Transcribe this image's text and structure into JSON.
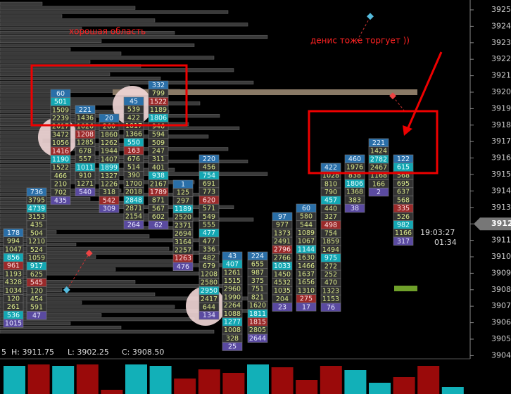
{
  "annotations": {
    "good_area": "хорошая область",
    "denis": "денис тоже торгует ))"
  },
  "price_axis": {
    "labels": [
      "3925",
      "3924",
      "3923",
      "3922",
      "3921",
      "3920",
      "3919",
      "3918",
      "3917",
      "3916",
      "3915",
      "3914",
      "3913",
      "3912",
      "3911",
      "3910",
      "3909",
      "3908",
      "3907",
      "3906",
      "3905",
      "3904"
    ],
    "current_index": 13
  },
  "clock": {
    "time": "19:03:27",
    "remaining": "01:34"
  },
  "status": {
    "period": "5",
    "high": "H: 3911.75",
    "low": "L: 3902.25",
    "close": "C: 3908.50"
  },
  "columns": [
    {
      "cells": [
        178,
        994,
        1047,
        856,
        961,
        1193,
        4328,
        1034,
        120,
        261,
        536,
        1015
      ]
    },
    {
      "cells": [
        736,
        3795,
        4739,
        3153,
        435,
        504,
        1210,
        524,
        1059,
        917,
        625,
        545,
        120,
        454,
        591,
        47
      ]
    },
    {
      "cells": [
        60,
        501,
        1509,
        2239,
        2617,
        3472,
        1056,
        1416,
        1190,
        1522,
        466,
        210,
        702,
        435
      ]
    },
    {
      "cells": [
        221,
        1436,
        1026,
        1208,
        1285,
        678,
        557,
        1011,
        910,
        1271,
        540
      ]
    },
    {
      "cells": [
        20,
        260,
        1860,
        1262,
        1944,
        1407,
        1899,
        1327,
        1226,
        318,
        542,
        309
      ]
    },
    {
      "cells": [
        45,
        539,
        422,
        1017,
        1366,
        550,
        163,
        676,
        514,
        390,
        1700,
        2018,
        2848,
        2871,
        2154,
        264
      ]
    },
    {
      "cells": [
        332,
        799,
        1522,
        1189,
        1806,
        946,
        594,
        509,
        247,
        311,
        401,
        938,
        2167,
        1789,
        871,
        567,
        602,
        62
      ]
    },
    {
      "cells": [
        1,
        125,
        297,
        1189,
        2520,
        2371,
        2694,
        3164,
        2257,
        1263,
        476
      ]
    },
    {
      "cells": [
        220,
        456,
        754,
        691,
        773,
        620,
        571,
        549,
        555,
        477,
        477,
        336,
        482,
        679,
        1208,
        2580,
        2950,
        2417,
        644,
        134
      ]
    },
    {
      "cells": [
        43,
        407,
        1261,
        1515,
        2960,
        1990,
        2264,
        1088,
        1277,
        1008,
        328,
        25
      ]
    },
    {
      "cells": [
        224,
        655,
        987,
        375,
        751,
        821,
        1620,
        1811,
        1815,
        2805,
        2644
      ]
    },
    {
      "cells": [
        97,
        977,
        1373,
        2491,
        2796,
        2766,
        1033,
        1450,
        4532,
        1035,
        204,
        23
      ]
    },
    {
      "cells": [
        60,
        580,
        544,
        1089,
        1067,
        1144,
        1630,
        1466,
        1637,
        1656,
        1310,
        275,
        17
      ]
    },
    {
      "cells": [
        422,
        1028,
        810,
        790,
        457,
        440,
        327,
        498,
        754,
        1859,
        1494,
        975,
        272,
        252,
        470,
        1323,
        1153,
        76
      ]
    },
    {
      "cells": [
        460,
        1976,
        838,
        1806,
        1368,
        383,
        38
      ]
    },
    {
      "cells": [
        221,
        1424,
        2782,
        2467,
        1168,
        166,
        2
      ]
    },
    {
      "cells": [
        122,
        615,
        568,
        695,
        637,
        568,
        335,
        526,
        982,
        1166,
        317
      ]
    }
  ]
}
